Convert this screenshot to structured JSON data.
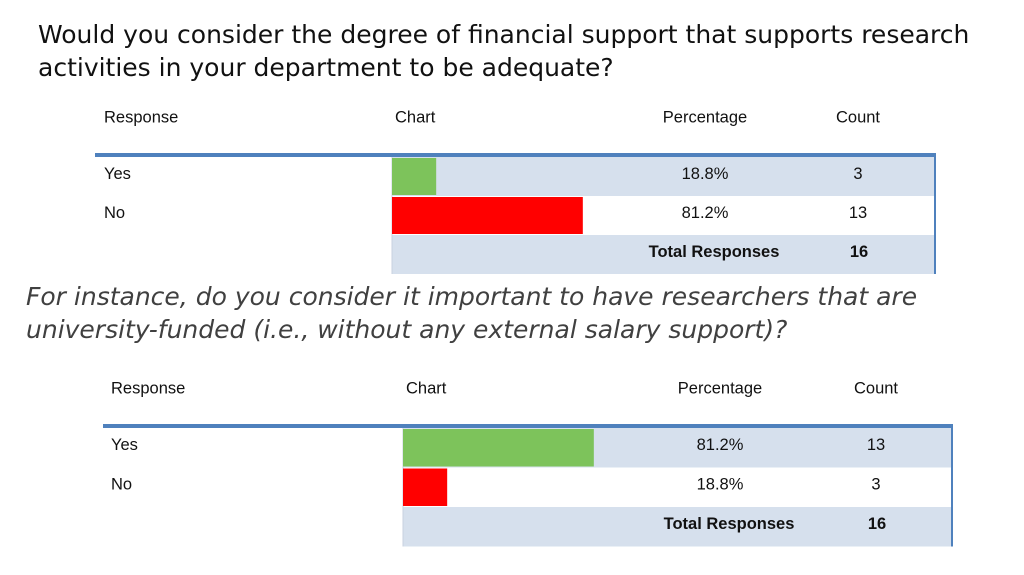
{
  "tables": [
    {
      "question": "Would you consider the degree of financial support that supports research activities in your department to be adequate?",
      "headers": [
        "Response",
        "Chart",
        "Percentage",
        "Count"
      ],
      "rows": [
        {
          "response": "Yes",
          "percentage": 18.8,
          "percentage_label": "18.8%",
          "count": 3
        },
        {
          "response": "No",
          "percentage": 81.2,
          "percentage_label": "81.2%",
          "count": 13
        }
      ],
      "total_label": "Total Responses",
      "total_count": 16
    },
    {
      "question": "For instance, do you consider it important to have researchers that are university-funded (i.e., without any external salary support)?",
      "headers": [
        "Response",
        "Chart",
        "Percentage",
        "Count"
      ],
      "rows": [
        {
          "response": "Yes",
          "percentage": 81.2,
          "percentage_label": "81.2%",
          "count": 13
        },
        {
          "response": "No",
          "percentage": 18.8,
          "percentage_label": "18.8%",
          "count": 3
        }
      ],
      "total_label": "Total Responses",
      "total_count": 16
    }
  ]
}
